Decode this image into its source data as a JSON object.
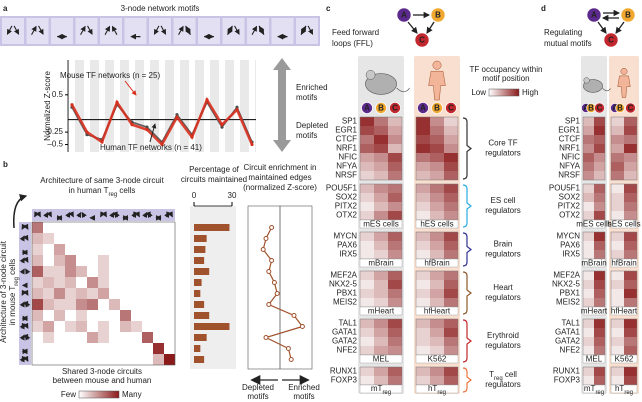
{
  "chart_data": [
    {
      "type": "line",
      "title": "3-node network motifs",
      "y_label": "Normalized Z-score",
      "categories": [
        null,
        null,
        null,
        null,
        null,
        null,
        null,
        null,
        null,
        null,
        null,
        null,
        null
      ],
      "ylim": [
        -0.65,
        1.2
      ],
      "yticks": [
        0.5,
        {
          "value": -0.25,
          "label": "–0.25"
        },
        {
          "value": -0.5,
          "label": "–0.5"
        }
      ],
      "series": [
        {
          "name": "Mouse TF networks (n = 25)",
          "color": "#d7301f",
          "values": [
            0.3,
            -0.25,
            -0.45,
            0.35,
            -0.1,
            -0.2,
            -0.5,
            0.05,
            -0.35,
            0.4,
            -0.1,
            0.2,
            -0.5
          ]
        },
        {
          "name": "Human TF networks (n = 41)",
          "color": "#4d4d4d",
          "values": [
            0.25,
            -0.3,
            -0.4,
            0.3,
            -0.05,
            -0.15,
            -0.45,
            0.1,
            -0.3,
            0.35,
            -0.15,
            0.25,
            -0.45
          ]
        }
      ],
      "upper_label": [
        "Enriched",
        "motifs"
      ],
      "lower_label": [
        "Depleted",
        "motifs"
      ]
    },
    {
      "type": "heatmap",
      "title": [
        "Architecture of same 3-node circuit",
        [
          "in human T",
          "reg",
          " cells"
        ]
      ],
      "y_label": [
        "Architecture of 3-node circuit",
        [
          "in mouse T",
          "reg",
          " cells"
        ]
      ],
      "x_label": [
        "Shared 3-node circuits",
        "between mouse and human"
      ],
      "legend_low": "Few",
      "legend_high": "Many",
      "color": "#8b1a1a",
      "values": [
        [
          0.6,
          0,
          0,
          0,
          0,
          0,
          0,
          0,
          0,
          0,
          0,
          0,
          0
        ],
        [
          0.3,
          0.2,
          0,
          0,
          0,
          0,
          0,
          0,
          0,
          0,
          0,
          0,
          0
        ],
        [
          0.2,
          0,
          0.4,
          0,
          0,
          0,
          0,
          0,
          0,
          0,
          0,
          0,
          0
        ],
        [
          0.3,
          0,
          0.3,
          0.5,
          0,
          0,
          0.2,
          0,
          0,
          0,
          0,
          0,
          0
        ],
        [
          0.7,
          0.2,
          0.2,
          0.5,
          0.3,
          0,
          0.2,
          0,
          0,
          0,
          0,
          0,
          0
        ],
        [
          0.2,
          0.3,
          0.2,
          0.3,
          0,
          0.5,
          0.2,
          0,
          0,
          0,
          0,
          0,
          0
        ],
        [
          0.3,
          0.2,
          0.5,
          0.2,
          0.3,
          0.2,
          0.4,
          0,
          0,
          0,
          0,
          0,
          0
        ],
        [
          0.8,
          0.3,
          0.2,
          0.2,
          0.5,
          0.6,
          0,
          0.3,
          0,
          0,
          0,
          0,
          0
        ],
        [
          0.3,
          0,
          0.3,
          0,
          0.2,
          0,
          0,
          0,
          0.6,
          0,
          0,
          0,
          0
        ],
        [
          0.2,
          0.4,
          0,
          0.2,
          0.3,
          0,
          0.2,
          0,
          0.3,
          0.2,
          0,
          0,
          0
        ],
        [
          0,
          0.2,
          0,
          0,
          0,
          0.4,
          0.2,
          0,
          0,
          0,
          0.7,
          0,
          0
        ],
        [
          0,
          0,
          0,
          0,
          0,
          0,
          0,
          0,
          0,
          0,
          0,
          0.9,
          0
        ],
        [
          0,
          0,
          0,
          0,
          0,
          0,
          0,
          0,
          0,
          0,
          0,
          0.3,
          1
        ]
      ]
    },
    {
      "type": "bar",
      "title": [
        "Percentage of",
        "circuits maintained"
      ],
      "color": "#a0522d",
      "values": [
        28,
        10,
        9,
        8,
        12,
        6,
        5,
        8,
        12,
        28,
        10,
        5,
        8
      ],
      "xlim": [
        0,
        30
      ],
      "xticks": [
        0,
        30
      ]
    },
    {
      "type": "line",
      "title": [
        "Circuit enrichment in",
        "maintained edges",
        "(normalized Z-score)"
      ],
      "color": "#a0522d",
      "values": [
        -0.3,
        -0.5,
        -0.6,
        -0.3,
        -0.4,
        -0.2,
        -0.1,
        -0.4,
        0.5,
        0.8,
        -0.5,
        0.3,
        0.4
      ],
      "xlim": [
        -1,
        1
      ],
      "left_label": [
        "Depleted",
        "motifs"
      ],
      "right_label": [
        "Enriched",
        "motifs"
      ]
    }
  ],
  "figure": {
    "panel_labels": [
      "a",
      "b",
      "c",
      "d"
    ],
    "nodes": [
      "A",
      "B",
      "C"
    ],
    "ffl_title": [
      "Feed forward",
      "loops (FFL)"
    ],
    "mutual_title": [
      "Regulating",
      "mutual motifs"
    ],
    "legend_title": [
      "TF occupancy within",
      "motif position"
    ],
    "legend_low": "Low",
    "legend_high": "High",
    "groups": [
      {
        "name": [
          "Core TF",
          "regulators"
        ],
        "color": "#333333",
        "genes": [
          "SP1",
          "EGR1",
          "CTCF",
          "NRF1",
          "NFIC",
          "NFYA",
          "NRSF"
        ],
        "ffl": [
          [
            0.9,
            0.6,
            0.3,
            0.9,
            0.5,
            0.2
          ],
          [
            0.8,
            0.7,
            0.4,
            0.9,
            0.6,
            0.3
          ],
          [
            0.6,
            0.9,
            0.5,
            0.8,
            0.7,
            0.4
          ],
          [
            0.7,
            0.8,
            0.3,
            0.9,
            0.8,
            0.5
          ],
          [
            0.4,
            0.5,
            0.8,
            0.6,
            0.7,
            0.9
          ],
          [
            0.3,
            0.4,
            0.7,
            0.4,
            0.5,
            0.8
          ],
          [
            0.2,
            0.3,
            0.6,
            0.3,
            0.4,
            0.7
          ]
        ],
        "mutual": [
          [
            0.3,
            0.8,
            0.2,
            0.7
          ],
          [
            0.4,
            0.9,
            0.3,
            0.8
          ],
          [
            0.6,
            0.7,
            0.5,
            0.6
          ],
          [
            0.5,
            0.8,
            0.4,
            0.9
          ],
          [
            0.7,
            0.5,
            0.6,
            0.5
          ],
          [
            0.6,
            0.4,
            0.7,
            0.4
          ],
          [
            0.5,
            0.3,
            0.6,
            0.3
          ]
        ]
      },
      {
        "name": [
          "ES cell",
          "regulators"
        ],
        "color": "#29abe2",
        "genes": [
          "POU5F1",
          "SOX2",
          "PITX2",
          "OTX2"
        ],
        "cells": [
          "mES cells",
          "hES cells"
        ],
        "ffl": [
          [
            0.3,
            0.5,
            0.6,
            0.4,
            0.6,
            0.8
          ],
          [
            0.2,
            0.4,
            0.7,
            0.3,
            0.5,
            0.7
          ],
          [
            0.1,
            0.3,
            0.5,
            0.2,
            0.4,
            0.6
          ],
          [
            0.2,
            0.5,
            0.8,
            0.1,
            0.3,
            0.5
          ]
        ],
        "mutual": [
          [
            0.2,
            0.7,
            0.1,
            0.8
          ],
          [
            0.3,
            0.6,
            0.2,
            0.7
          ],
          [
            0.1,
            0.5,
            0.2,
            0.6
          ],
          [
            0.2,
            0.8,
            0.1,
            0.5
          ]
        ]
      },
      {
        "name": [
          "Brain",
          "regulators"
        ],
        "color": "#2e3192",
        "genes": [
          "MYCN",
          "PAX6",
          "IRX5"
        ],
        "cells": [
          "mBrain",
          "hfBrain"
        ],
        "ffl": [
          [
            0.2,
            0.4,
            0.7,
            0.3,
            0.5,
            0.8
          ],
          [
            0.1,
            0.3,
            0.6,
            0.2,
            0.4,
            0.7
          ],
          [
            0.1,
            0.2,
            0.5,
            0.1,
            0.3,
            0.6
          ]
        ],
        "mutual": [
          [
            0.2,
            0.9,
            0.2,
            0.8
          ],
          [
            0.1,
            0.7,
            0.1,
            0.7
          ],
          [
            0.1,
            0.6,
            0.2,
            0.6
          ]
        ]
      },
      {
        "name": [
          "Heart",
          "regulators"
        ],
        "color": "#8c5a2b",
        "genes": [
          "MEF2A",
          "NKX2-5",
          "PBX1",
          "MEIS2"
        ],
        "cells": [
          "mHeart",
          "hfHeart"
        ],
        "ffl": [
          [
            0.2,
            0.4,
            0.7,
            0.2,
            0.4,
            0.6
          ],
          [
            0.1,
            0.3,
            0.8,
            0.1,
            0.3,
            0.7
          ],
          [
            0.2,
            0.3,
            0.6,
            0.2,
            0.4,
            0.8
          ],
          [
            0.1,
            0.2,
            0.5,
            0.1,
            0.3,
            0.6
          ]
        ],
        "mutual": [
          [
            0.1,
            0.9,
            0.1,
            0.8
          ],
          [
            0.2,
            0.8,
            0.2,
            0.7
          ],
          [
            0.1,
            0.7,
            0.1,
            0.9
          ],
          [
            0.2,
            0.6,
            0.1,
            0.6
          ]
        ]
      },
      {
        "name": [
          "Erythroid",
          "regulators"
        ],
        "color": "#c1272d",
        "genes": [
          "TAL1",
          "GATA1",
          "GATA2",
          "NFE2"
        ],
        "cells": [
          "MEL",
          "K562"
        ],
        "ffl": [
          [
            0.3,
            0.5,
            0.8,
            0.3,
            0.5,
            0.7
          ],
          [
            0.2,
            0.4,
            0.7,
            0.2,
            0.4,
            0.8
          ],
          [
            0.1,
            0.3,
            0.6,
            0.2,
            0.3,
            0.6
          ],
          [
            0.2,
            0.4,
            0.5,
            0.1,
            0.2,
            0.5
          ]
        ],
        "mutual": [
          [
            0.2,
            0.9,
            0.2,
            0.9
          ],
          [
            0.1,
            0.8,
            0.1,
            0.8
          ],
          [
            0.2,
            0.7,
            0.2,
            0.6
          ],
          [
            0.1,
            0.6,
            0.1,
            0.7
          ]
        ]
      },
      {
        "name": [
          [
            "T",
            "reg",
            " cell"
          ],
          "regulators"
        ],
        "color": "#e8743b",
        "genes": [
          "RUNX1",
          "FOXP3"
        ],
        "cells": [
          [
            "mT",
            "reg"
          ],
          [
            "hT",
            "reg"
          ]
        ],
        "ffl": [
          [
            0.2,
            0.4,
            0.7,
            0.3,
            0.5,
            0.8
          ],
          [
            0.1,
            0.3,
            0.6,
            0.2,
            0.4,
            0.7
          ]
        ],
        "mutual": [
          [
            0.2,
            0.8,
            0.2,
            0.9
          ],
          [
            0.1,
            0.7,
            0.1,
            0.8
          ]
        ]
      }
    ]
  }
}
